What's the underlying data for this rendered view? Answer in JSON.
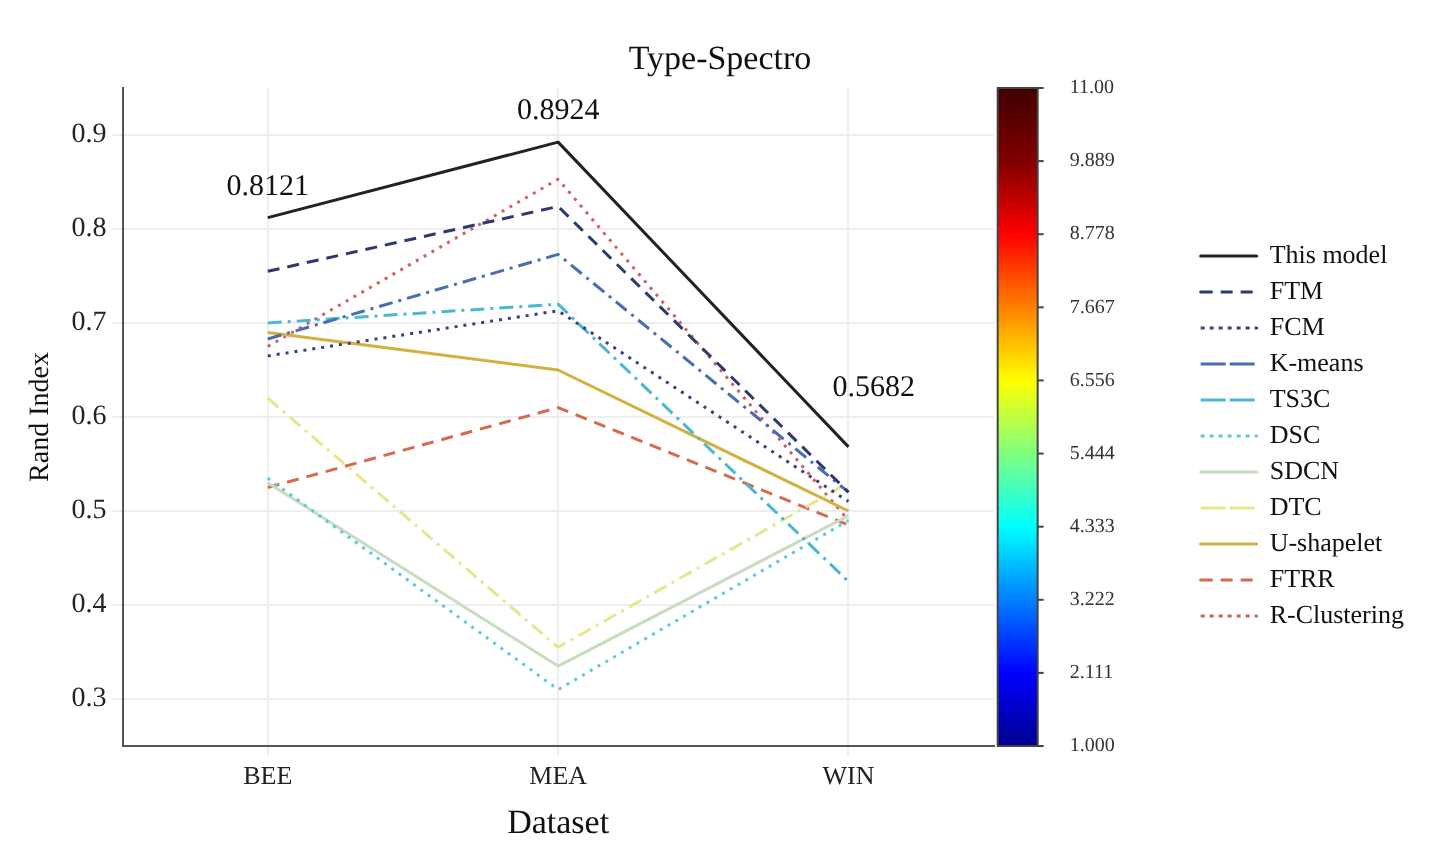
{
  "chart_data": {
    "type": "line",
    "title": "Type-Spectro",
    "xlabel": "Dataset",
    "ylabel": "Rand Index",
    "categories": [
      "BEE",
      "MEA",
      "WIN"
    ],
    "ylim": [
      0.25,
      0.95
    ],
    "yticks": [
      0.3,
      0.4,
      0.5,
      0.6,
      0.7,
      0.8,
      0.9
    ],
    "grid": true,
    "legend": "right",
    "marker": "none",
    "clim": [
      1,
      11
    ],
    "cticks": [
      {
        "value": 1,
        "label": "1.000"
      },
      {
        "value": 2.111,
        "label": "2.111"
      },
      {
        "value": 3.222,
        "label": "3.222"
      },
      {
        "value": 4.333,
        "label": "4.333"
      },
      {
        "value": 5.444,
        "label": "5.444"
      },
      {
        "value": 6.556,
        "label": "6.556"
      },
      {
        "value": 7.667,
        "label": "7.667"
      },
      {
        "value": 8.778,
        "label": "8.778"
      },
      {
        "value": 9.889,
        "label": "9.889"
      },
      {
        "value": 11,
        "label": "11.00"
      }
    ],
    "series": [
      {
        "name": "This model",
        "color": "#222222",
        "line_style": "solid",
        "values": [
          0.8121,
          0.8924,
          0.5682
        ],
        "value_labels": [
          "0.8121",
          "0.8924",
          "0.5682"
        ]
      },
      {
        "name": "FTM",
        "color": "#2e3a6e",
        "line_style": "dashed",
        "values": [
          0.755,
          0.824,
          0.52
        ]
      },
      {
        "name": "FCM",
        "color": "#3b3f7a",
        "line_style": "dotted",
        "values": [
          0.665,
          0.713,
          0.51
        ]
      },
      {
        "name": "K-means",
        "color": "#4a6cb0",
        "line_style": "dashdot",
        "values": [
          0.683,
          0.773,
          0.52
        ]
      },
      {
        "name": "TS3C",
        "color": "#49b8d0",
        "line_style": "dashdot",
        "values": [
          0.7,
          0.72,
          0.425
        ]
      },
      {
        "name": "DSC",
        "color": "#5fc8e0",
        "line_style": "dotted",
        "values": [
          0.535,
          0.31,
          0.49
        ]
      },
      {
        "name": "SDCN",
        "color": "#c8dcc0",
        "line_style": "solid",
        "values": [
          0.53,
          0.335,
          0.495
        ]
      },
      {
        "name": "DTC",
        "color": "#e6e68c",
        "line_style": "dashdot",
        "values": [
          0.62,
          0.355,
          0.53
        ]
      },
      {
        "name": "U-shapelet",
        "color": "#d4b040",
        "line_style": "solid",
        "values": [
          0.69,
          0.65,
          0.5
        ]
      },
      {
        "name": "FTRR",
        "color": "#d46a50",
        "line_style": "dashed",
        "values": [
          0.525,
          0.61,
          0.485
        ]
      },
      {
        "name": "R-Clustering",
        "color": "#d06060",
        "line_style": "dotted",
        "values": [
          0.675,
          0.853,
          0.49
        ]
      }
    ]
  }
}
